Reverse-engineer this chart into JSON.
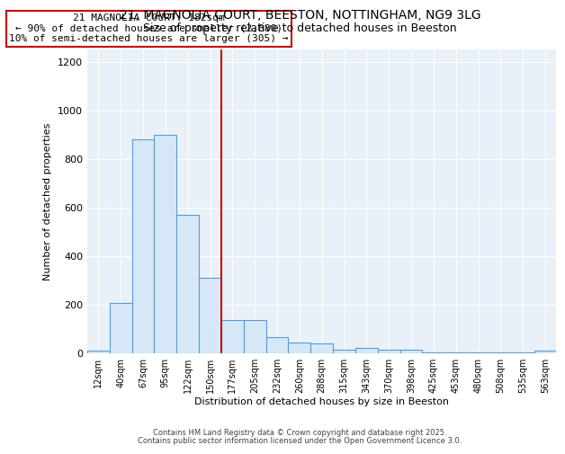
{
  "title1": "21, MAGNOLIA COURT, BEESTON, NOTTINGHAM, NG9 3LG",
  "title2": "Size of property relative to detached houses in Beeston",
  "xlabel": "Distribution of detached houses by size in Beeston",
  "ylabel": "Number of detached properties",
  "bar_labels": [
    "12sqm",
    "40sqm",
    "67sqm",
    "95sqm",
    "122sqm",
    "150sqm",
    "177sqm",
    "205sqm",
    "232sqm",
    "260sqm",
    "288sqm",
    "315sqm",
    "343sqm",
    "370sqm",
    "398sqm",
    "425sqm",
    "453sqm",
    "480sqm",
    "508sqm",
    "535sqm",
    "563sqm"
  ],
  "bar_values": [
    10,
    205,
    880,
    900,
    570,
    310,
    135,
    135,
    65,
    45,
    40,
    12,
    20,
    15,
    12,
    2,
    2,
    2,
    2,
    2,
    10
  ],
  "bar_color_fill": "#d6e8f7",
  "bar_color_edge": "#5b9bd5",
  "vline_index": 6,
  "vline_color": "#cc0000",
  "annotation_title": "21 MAGNOLIA COURT: 182sqm",
  "annotation_line1": "← 90% of detached houses are smaller (2,880)",
  "annotation_line2": "10% of semi-detached houses are larger (305) →",
  "annotation_box_color": "#cc0000",
  "ylim": [
    0,
    1250
  ],
  "yticks": [
    0,
    200,
    400,
    600,
    800,
    1000,
    1200
  ],
  "footer1": "Contains HM Land Registry data © Crown copyright and database right 2025.",
  "footer2": "Contains public sector information licensed under the Open Government Licence 3.0.",
  "bg_color": "#e8f0f8",
  "fig_bg_color": "#ffffff"
}
